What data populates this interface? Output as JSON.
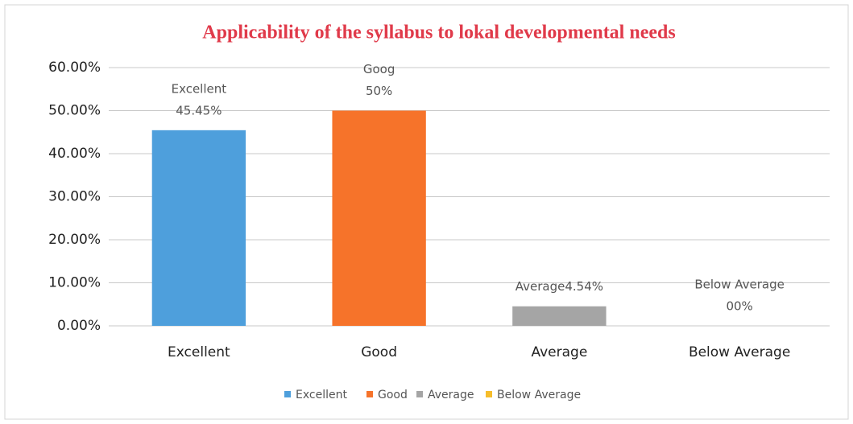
{
  "chart_data": {
    "type": "bar",
    "title": "Applicability of the syllabus to lokal developmental needs",
    "categories": [
      "Excellent",
      "Good",
      "Average",
      "Below Average"
    ],
    "values": [
      45.45,
      50,
      4.54,
      0
    ],
    "value_labels": [
      [
        "Excellent",
        "45.45%"
      ],
      [
        "Goog",
        "50%"
      ],
      [
        "Average4.54%"
      ],
      [
        "Below Average",
        "00%"
      ]
    ],
    "colors": [
      "#4e9fdc",
      "#f6732a",
      "#a5a5a5",
      "#f6bd2b"
    ],
    "ylim": [
      0,
      60
    ],
    "yticks": [
      {
        "value": 0,
        "label": "0.00%"
      },
      {
        "value": 10,
        "label": "10.00%"
      },
      {
        "value": 20,
        "label": "20.00%"
      },
      {
        "value": 30,
        "label": "30.00%"
      },
      {
        "value": 40,
        "label": "40.00%"
      },
      {
        "value": 50,
        "label": "50.00%"
      },
      {
        "value": 60,
        "label": "60.00%"
      }
    ],
    "grid": true,
    "legend": "bottom"
  }
}
